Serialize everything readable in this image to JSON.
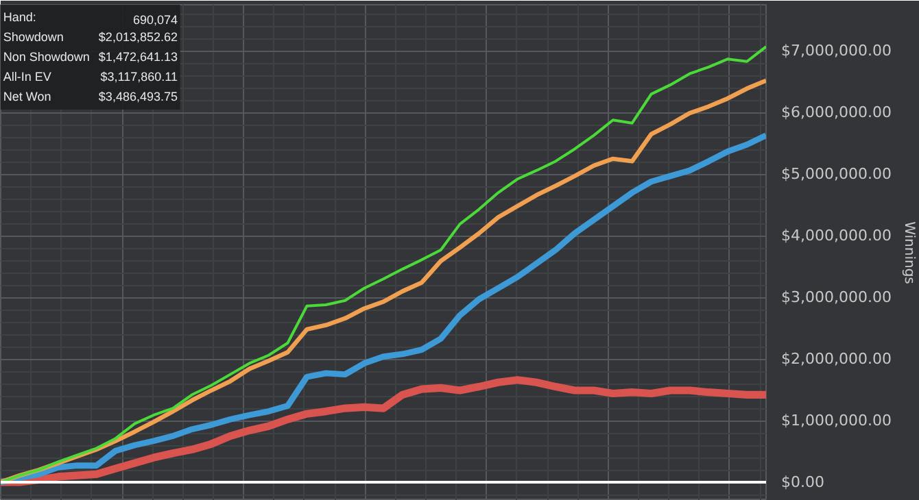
{
  "chart_data": {
    "type": "line",
    "ylabel": "Winnings",
    "categories": [
      null,
      null,
      null,
      null,
      null,
      null,
      null,
      null,
      null,
      null,
      null,
      null,
      null,
      null,
      null,
      null,
      null,
      null,
      null,
      null,
      null,
      null,
      null,
      null,
      null,
      null,
      null,
      null,
      null,
      null,
      null,
      null,
      null,
      null,
      null,
      null,
      null,
      null,
      null,
      null,
      null
    ],
    "series": [
      {
        "color": "#d9534f",
        "values": [
          0,
          0,
          40000,
          90000,
          110000,
          130000,
          220000,
          310000,
          400000,
          470000,
          530000,
          620000,
          750000,
          840000,
          910000,
          1020000,
          1110000,
          1150000,
          1200000,
          1220000,
          1200000,
          1420000,
          1510000,
          1530000,
          1490000,
          1550000,
          1620000,
          1660000,
          1620000,
          1550000,
          1490000,
          1490000,
          1440000,
          1460000,
          1440000,
          1490000,
          1490000,
          1460000,
          1440000,
          1420000,
          1420000
        ]
      },
      {
        "color": "#3e9ad6",
        "values": [
          0,
          70000,
          130000,
          240000,
          270000,
          270000,
          510000,
          600000,
          670000,
          750000,
          860000,
          930000,
          1020000,
          1090000,
          1150000,
          1240000,
          1710000,
          1770000,
          1750000,
          1930000,
          2040000,
          2080000,
          2150000,
          2330000,
          2710000,
          2970000,
          3150000,
          3330000,
          3550000,
          3770000,
          4040000,
          4260000,
          4480000,
          4700000,
          4880000,
          4970000,
          5060000,
          5210000,
          5370000,
          5480000,
          5630000
        ]
      },
      {
        "color": "#f0a050",
        "values": [
          0,
          110000,
          200000,
          310000,
          420000,
          530000,
          670000,
          820000,
          980000,
          1150000,
          1330000,
          1490000,
          1640000,
          1840000,
          1970000,
          2110000,
          2480000,
          2550000,
          2660000,
          2820000,
          2930000,
          3100000,
          3240000,
          3590000,
          3810000,
          4040000,
          4300000,
          4480000,
          4660000,
          4810000,
          4970000,
          5140000,
          5250000,
          5210000,
          5650000,
          5810000,
          5990000,
          6100000,
          6230000,
          6390000,
          6520000
        ]
      },
      {
        "color": "#4cd93a",
        "values": [
          0,
          110000,
          200000,
          330000,
          440000,
          550000,
          710000,
          950000,
          1090000,
          1200000,
          1420000,
          1570000,
          1750000,
          1930000,
          2060000,
          2260000,
          2860000,
          2880000,
          2950000,
          3150000,
          3300000,
          3460000,
          3610000,
          3770000,
          4190000,
          4430000,
          4700000,
          4920000,
          5060000,
          5210000,
          5410000,
          5630000,
          5880000,
          5830000,
          6300000,
          6450000,
          6630000,
          6740000,
          6870000,
          6830000,
          7070000
        ]
      }
    ],
    "ylim": [
      -300000,
      7750000
    ],
    "yticks": [
      {
        "value": 0,
        "label": "$0.00"
      },
      {
        "value": 1000000,
        "label": "$1,000,000.00"
      },
      {
        "value": 2000000,
        "label": "$2,000,000.00"
      },
      {
        "value": 3000000,
        "label": "$3,000,000.00"
      },
      {
        "value": 4000000,
        "label": "$4,000,000.00"
      },
      {
        "value": 5000000,
        "label": "$5,000,000.00"
      },
      {
        "value": 6000000,
        "label": "$6,000,000.00"
      },
      {
        "value": 7000000,
        "label": "$7,000,000.00"
      }
    ],
    "tick_labels": "y",
    "grid": true,
    "line_style": "solid",
    "marker": "none",
    "ref_lines": [
      {
        "axis": "y",
        "value": 0,
        "color": "#ffffff"
      }
    ],
    "annotations": [
      "Hand:",
      "690,074",
      "Showdown",
      "$2,013,852.62",
      "Non Showdown",
      "$1,472,641.13",
      "All-In EV",
      "$3,117,860.11",
      "Net Won",
      "$3,486,493.75"
    ]
  }
}
